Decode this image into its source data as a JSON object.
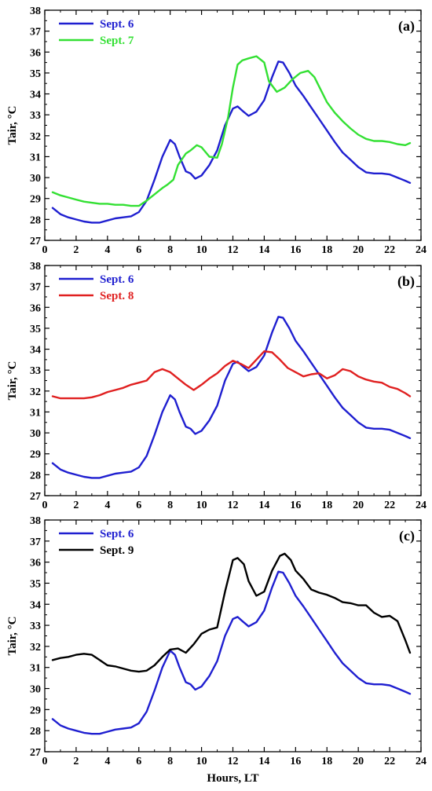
{
  "chart_data": [
    {
      "type": "line",
      "panel_label": "(a)",
      "ylabel": "Tair, °C",
      "xlabel": "",
      "xlim": [
        0,
        24
      ],
      "ylim": [
        27,
        38
      ],
      "xticks": [
        "0",
        "2",
        "4",
        "6",
        "8",
        "10",
        "12",
        "14",
        "16",
        "18",
        "20",
        "22",
        "24"
      ],
      "yticks": [
        "27",
        "28",
        "29",
        "30",
        "31",
        "32",
        "33",
        "34",
        "35",
        "36",
        "37",
        "38"
      ],
      "legend_position": "top-left",
      "series": [
        {
          "name": "Sept. 6",
          "color": "#1f1fd0",
          "x": [
            0.5,
            1,
            1.5,
            2,
            2.5,
            3,
            3.5,
            4,
            4.5,
            5,
            5.5,
            6,
            6.5,
            7,
            7.5,
            8,
            8.3,
            8.6,
            9,
            9.3,
            9.6,
            10,
            10.5,
            11,
            11.5,
            12,
            12.3,
            12.6,
            13,
            13.5,
            14,
            14.5,
            14.9,
            15.2,
            15.6,
            16,
            16.5,
            17,
            17.5,
            18,
            18.5,
            19,
            19.5,
            20,
            20.5,
            21,
            21.5,
            22,
            22.5,
            23,
            23.3
          ],
          "y": [
            28.55,
            28.25,
            28.1,
            28.0,
            27.9,
            27.85,
            27.85,
            27.95,
            28.05,
            28.1,
            28.15,
            28.35,
            28.9,
            29.9,
            31.0,
            31.8,
            31.6,
            31.0,
            30.3,
            30.2,
            29.95,
            30.1,
            30.6,
            31.3,
            32.5,
            33.3,
            33.4,
            33.2,
            32.95,
            33.15,
            33.7,
            34.8,
            35.55,
            35.5,
            35.0,
            34.4,
            33.9,
            33.35,
            32.8,
            32.25,
            31.7,
            31.2,
            30.85,
            30.5,
            30.25,
            30.2,
            30.2,
            30.15,
            30.0,
            29.85,
            29.75
          ]
        },
        {
          "name": "Sept. 7",
          "color": "#33e033",
          "x": [
            0.5,
            1,
            1.5,
            2,
            2.5,
            3,
            3.5,
            4,
            4.5,
            5,
            5.5,
            6,
            6.5,
            7,
            7.5,
            7.8,
            8.2,
            8.5,
            9,
            9.3,
            9.7,
            10,
            10.5,
            11,
            11.3,
            11.7,
            12,
            12.3,
            12.6,
            13,
            13.5,
            14,
            14.3,
            14.8,
            15.3,
            15.8,
            16.3,
            16.8,
            17.2,
            17.6,
            18,
            18.5,
            19,
            19.5,
            20,
            20.5,
            21,
            21.5,
            22,
            22.5,
            23,
            23.3
          ],
          "y": [
            29.3,
            29.15,
            29.05,
            28.95,
            28.85,
            28.8,
            28.75,
            28.75,
            28.7,
            28.7,
            28.65,
            28.65,
            28.9,
            29.2,
            29.5,
            29.65,
            29.9,
            30.6,
            31.15,
            31.3,
            31.55,
            31.45,
            31.0,
            30.95,
            31.6,
            32.9,
            34.3,
            35.4,
            35.6,
            35.7,
            35.8,
            35.5,
            34.6,
            34.1,
            34.3,
            34.7,
            35.0,
            35.1,
            34.8,
            34.2,
            33.6,
            33.1,
            32.7,
            32.35,
            32.05,
            31.85,
            31.75,
            31.75,
            31.7,
            31.6,
            31.55,
            31.65
          ]
        }
      ]
    },
    {
      "type": "line",
      "panel_label": "(b)",
      "ylabel": "Tair, °C",
      "xlabel": "",
      "xlim": [
        0,
        24
      ],
      "ylim": [
        27,
        38
      ],
      "xticks": [
        "0",
        "2",
        "4",
        "6",
        "8",
        "10",
        "12",
        "14",
        "16",
        "18",
        "20",
        "22",
        "24"
      ],
      "yticks": [
        "27",
        "28",
        "29",
        "30",
        "31",
        "32",
        "33",
        "34",
        "35",
        "36",
        "37",
        "38"
      ],
      "legend_position": "top-left",
      "series": [
        {
          "name": "Sept. 6",
          "color": "#1f1fd0",
          "x": [
            0.5,
            1,
            1.5,
            2,
            2.5,
            3,
            3.5,
            4,
            4.5,
            5,
            5.5,
            6,
            6.5,
            7,
            7.5,
            8,
            8.3,
            8.6,
            9,
            9.3,
            9.6,
            10,
            10.5,
            11,
            11.5,
            12,
            12.3,
            12.6,
            13,
            13.5,
            14,
            14.5,
            14.9,
            15.2,
            15.6,
            16,
            16.5,
            17,
            17.5,
            18,
            18.5,
            19,
            19.5,
            20,
            20.5,
            21,
            21.5,
            22,
            22.5,
            23,
            23.3
          ],
          "y": [
            28.55,
            28.25,
            28.1,
            28.0,
            27.9,
            27.85,
            27.85,
            27.95,
            28.05,
            28.1,
            28.15,
            28.35,
            28.9,
            29.9,
            31.0,
            31.8,
            31.6,
            31.0,
            30.3,
            30.2,
            29.95,
            30.1,
            30.6,
            31.3,
            32.5,
            33.3,
            33.4,
            33.2,
            32.95,
            33.15,
            33.7,
            34.8,
            35.55,
            35.5,
            35.0,
            34.4,
            33.9,
            33.35,
            32.8,
            32.25,
            31.7,
            31.2,
            30.85,
            30.5,
            30.25,
            30.2,
            30.2,
            30.15,
            30.0,
            29.85,
            29.75
          ]
        },
        {
          "name": "Sept. 8",
          "color": "#e02020",
          "x": [
            0.5,
            1,
            1.5,
            2,
            2.5,
            3,
            3.5,
            4,
            4.5,
            5,
            5.5,
            6,
            6.5,
            7,
            7.5,
            8,
            8.5,
            9,
            9.5,
            10,
            10.5,
            11,
            11.5,
            12,
            12.5,
            13,
            13.5,
            14,
            14.5,
            15,
            15.5,
            16,
            16.5,
            17,
            17.5,
            18,
            18.5,
            19,
            19.5,
            20,
            20.5,
            21,
            21.5,
            22,
            22.5,
            23,
            23.3
          ],
          "y": [
            31.75,
            31.65,
            31.65,
            31.65,
            31.65,
            31.7,
            31.8,
            31.95,
            32.05,
            32.15,
            32.3,
            32.4,
            32.5,
            32.9,
            33.05,
            32.9,
            32.6,
            32.3,
            32.05,
            32.3,
            32.6,
            32.85,
            33.2,
            33.45,
            33.3,
            33.1,
            33.5,
            33.9,
            33.85,
            33.5,
            33.1,
            32.9,
            32.7,
            32.8,
            32.85,
            32.6,
            32.75,
            33.05,
            32.95,
            32.7,
            32.55,
            32.45,
            32.4,
            32.2,
            32.1,
            31.9,
            31.75
          ]
        }
      ]
    },
    {
      "type": "line",
      "panel_label": "(c)",
      "ylabel": "Tair, °C",
      "xlabel": "Hours, LT",
      "xlim": [
        0,
        24
      ],
      "ylim": [
        27,
        38
      ],
      "xticks": [
        "0",
        "2",
        "4",
        "6",
        "8",
        "10",
        "12",
        "14",
        "16",
        "18",
        "20",
        "22",
        "24"
      ],
      "yticks": [
        "27",
        "28",
        "29",
        "30",
        "31",
        "32",
        "33",
        "34",
        "35",
        "36",
        "37",
        "38"
      ],
      "legend_position": "top-left",
      "series": [
        {
          "name": "Sept. 6",
          "color": "#1f1fd0",
          "x": [
            0.5,
            1,
            1.5,
            2,
            2.5,
            3,
            3.5,
            4,
            4.5,
            5,
            5.5,
            6,
            6.5,
            7,
            7.5,
            8,
            8.3,
            8.6,
            9,
            9.3,
            9.6,
            10,
            10.5,
            11,
            11.5,
            12,
            12.3,
            12.6,
            13,
            13.5,
            14,
            14.5,
            14.9,
            15.2,
            15.6,
            16,
            16.5,
            17,
            17.5,
            18,
            18.5,
            19,
            19.5,
            20,
            20.5,
            21,
            21.5,
            22,
            22.5,
            23,
            23.3
          ],
          "y": [
            28.55,
            28.25,
            28.1,
            28.0,
            27.9,
            27.85,
            27.85,
            27.95,
            28.05,
            28.1,
            28.15,
            28.35,
            28.9,
            29.9,
            31.0,
            31.8,
            31.6,
            31.0,
            30.3,
            30.2,
            29.95,
            30.1,
            30.6,
            31.3,
            32.5,
            33.3,
            33.4,
            33.2,
            32.95,
            33.15,
            33.7,
            34.8,
            35.55,
            35.5,
            35.0,
            34.4,
            33.9,
            33.35,
            32.8,
            32.25,
            31.7,
            31.2,
            30.85,
            30.5,
            30.25,
            30.2,
            30.2,
            30.15,
            30.0,
            29.85,
            29.75
          ]
        },
        {
          "name": "Sept. 9",
          "color": "#000000",
          "x": [
            0.5,
            1,
            1.5,
            2,
            2.5,
            3,
            3.5,
            4,
            4.5,
            5,
            5.5,
            6,
            6.5,
            7,
            7.5,
            8,
            8.5,
            9,
            9.5,
            10,
            10.5,
            11,
            11.5,
            12,
            12.3,
            12.7,
            13,
            13.5,
            14,
            14.5,
            15,
            15.3,
            15.7,
            16,
            16.5,
            17,
            17.5,
            18,
            18.5,
            19,
            19.5,
            20,
            20.5,
            21,
            21.5,
            22,
            22.5,
            23,
            23.3
          ],
          "y": [
            31.35,
            31.45,
            31.5,
            31.6,
            31.65,
            31.6,
            31.35,
            31.1,
            31.05,
            30.95,
            30.85,
            30.8,
            30.85,
            31.1,
            31.5,
            31.85,
            31.9,
            31.7,
            32.1,
            32.6,
            32.8,
            32.9,
            34.6,
            36.1,
            36.2,
            35.9,
            35.1,
            34.4,
            34.6,
            35.6,
            36.3,
            36.4,
            36.1,
            35.6,
            35.2,
            34.7,
            34.55,
            34.45,
            34.3,
            34.1,
            34.05,
            33.95,
            33.95,
            33.6,
            33.4,
            33.45,
            33.2,
            32.3,
            31.7
          ]
        }
      ]
    }
  ]
}
